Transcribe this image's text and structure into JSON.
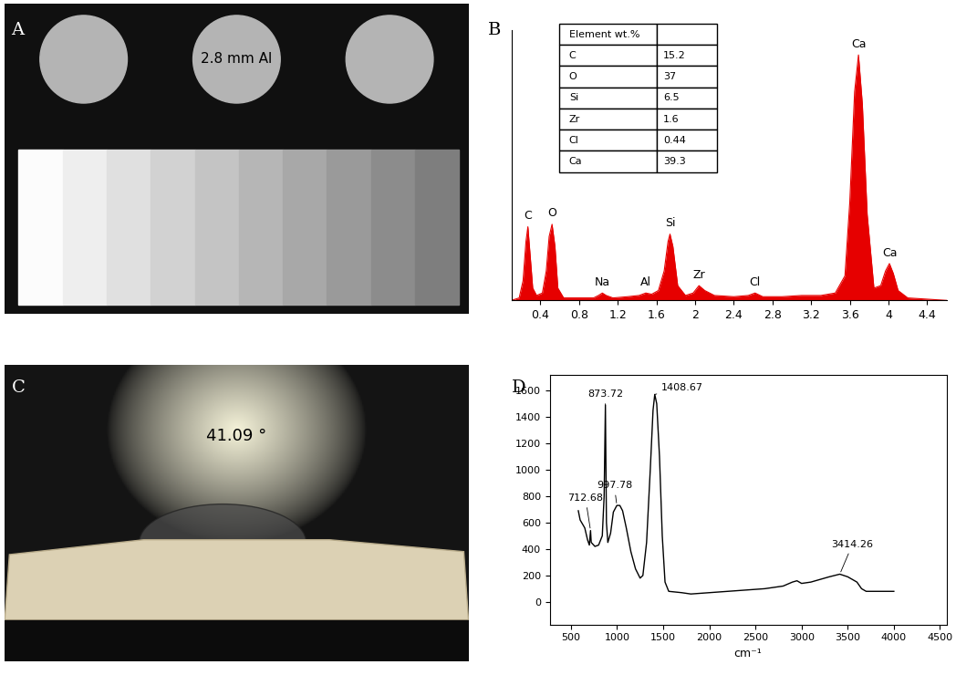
{
  "chart_data": [
    {
      "type": "image",
      "title": "A",
      "annotations": [
        "2.8 mm Al"
      ]
    },
    {
      "type": "area",
      "title": "B",
      "color": "#e60000",
      "x": [
        0.1,
        0.18,
        0.22,
        0.25,
        0.27,
        0.29,
        0.32,
        0.36,
        0.42,
        0.46,
        0.49,
        0.52,
        0.55,
        0.58,
        0.64,
        0.8,
        0.95,
        1.0,
        1.04,
        1.08,
        1.15,
        1.3,
        1.42,
        1.49,
        1.55,
        1.62,
        1.68,
        1.72,
        1.74,
        1.77,
        1.82,
        1.9,
        1.98,
        2.04,
        2.1,
        2.2,
        2.4,
        2.55,
        2.62,
        2.7,
        2.9,
        3.1,
        3.3,
        3.45,
        3.55,
        3.6,
        3.65,
        3.69,
        3.73,
        3.78,
        3.85,
        3.92,
        3.97,
        4.01,
        4.05,
        4.1,
        4.2,
        4.4,
        4.6
      ],
      "values": [
        0,
        1,
        8,
        24,
        30,
        20,
        5,
        2,
        3,
        12,
        26,
        31,
        22,
        5,
        1,
        1,
        1,
        2,
        3,
        2,
        1,
        1.5,
        2,
        3,
        2.5,
        4,
        12,
        24,
        27,
        22,
        6,
        2,
        3,
        6,
        4,
        2,
        1.5,
        2,
        3,
        1.5,
        1.5,
        2,
        2,
        3,
        10,
        40,
        85,
        100,
        80,
        35,
        5,
        6,
        12,
        15,
        11,
        4,
        1,
        0.5,
        0
      ],
      "xlim": [
        0.1,
        4.6
      ],
      "ylim": [
        0,
        110
      ],
      "xticks": [
        0.4,
        0.8,
        1.2,
        1.6,
        2,
        2.4,
        2.8,
        3.2,
        3.6,
        4,
        4.4
      ],
      "yticks": [],
      "tick_labels": "x",
      "annotations": [
        {
          "text": "C",
          "x": 0.27,
          "y": 30
        },
        {
          "text": "O",
          "x": 0.52,
          "y": 31
        },
        {
          "text": "Na",
          "x": 1.04,
          "y": 3
        },
        {
          "text": "Al",
          "x": 1.49,
          "y": 3
        },
        {
          "text": "Si",
          "x": 1.74,
          "y": 27
        },
        {
          "text": "Zr",
          "x": 2.04,
          "y": 6
        },
        {
          "text": "Cl",
          "x": 2.62,
          "y": 3
        },
        {
          "text": "Ca",
          "x": 3.69,
          "y": 100
        },
        {
          "text": "Ca",
          "x": 4.01,
          "y": 15
        }
      ],
      "table": {
        "header": "Element wt.%",
        "rows": [
          [
            "C",
            15.2
          ],
          [
            "O",
            37
          ],
          [
            "Si",
            6.5
          ],
          [
            "Zr",
            1.6
          ],
          [
            "Cl",
            0.44
          ],
          [
            "Ca",
            39.3
          ]
        ]
      }
    },
    {
      "type": "image",
      "title": "C",
      "annotations": [
        "41.09 °"
      ]
    },
    {
      "type": "line",
      "title": "D",
      "color": "#000000",
      "xlabel": "cm⁻¹",
      "x": [
        580,
        600,
        650,
        680,
        700,
        712.68,
        720,
        760,
        800,
        840,
        860,
        873.72,
        885,
        900,
        930,
        960,
        997.78,
        1030,
        1060,
        1100,
        1150,
        1200,
        1250,
        1280,
        1320,
        1360,
        1390,
        1408.67,
        1430,
        1460,
        1490,
        1520,
        1560,
        1700,
        1800,
        2000,
        2200,
        2400,
        2600,
        2800,
        2900,
        2950,
        3000,
        3100,
        3200,
        3300,
        3414.26,
        3500,
        3600,
        3650,
        3700,
        4000
      ],
      "values": [
        690,
        620,
        560,
        470,
        430,
        540,
        450,
        420,
        430,
        500,
        800,
        1490,
        600,
        450,
        520,
        680,
        730,
        730,
        690,
        560,
        380,
        250,
        180,
        200,
        450,
        1000,
        1450,
        1570,
        1500,
        1100,
        500,
        150,
        80,
        70,
        60,
        70,
        80,
        90,
        100,
        120,
        150,
        160,
        140,
        150,
        170,
        190,
        210,
        190,
        150,
        100,
        80,
        80
      ],
      "xlim": [
        270,
        4570
      ],
      "ylim": [
        -170,
        1720
      ],
      "xticks": [
        500,
        1000,
        1500,
        2000,
        2500,
        3000,
        3500,
        4000,
        4500
      ],
      "yticks": [
        0,
        200,
        400,
        600,
        800,
        1000,
        1200,
        1400,
        1600
      ],
      "peaks": [
        {
          "x": 712.68,
          "y": 540
        },
        {
          "x": 873.72,
          "y": 1490
        },
        {
          "x": 997.78,
          "y": 730
        },
        {
          "x": 1408.67,
          "y": 1570
        },
        {
          "x": 3414.26,
          "y": 210
        }
      ]
    }
  ]
}
